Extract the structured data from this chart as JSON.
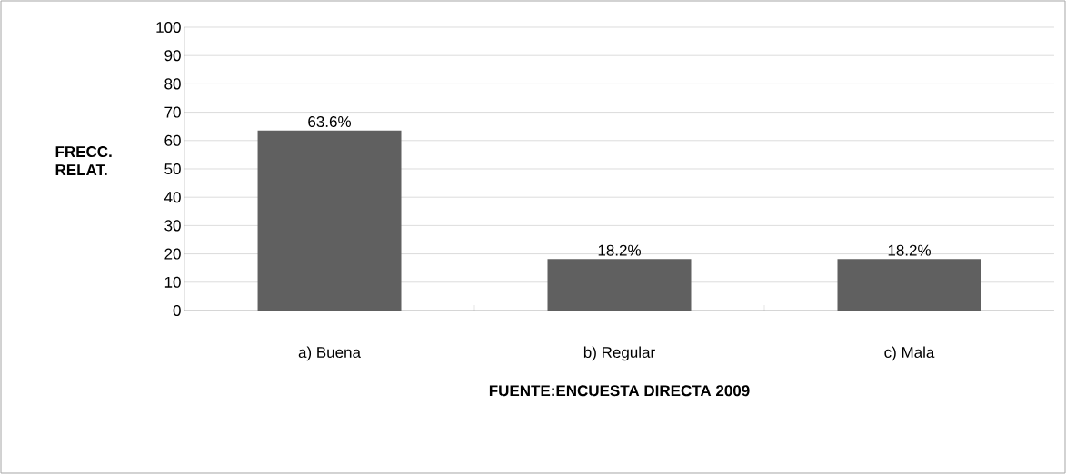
{
  "chart_data": {
    "type": "bar",
    "categories": [
      "a)    Buena",
      "b)    Regular",
      "c) Mala"
    ],
    "values": [
      63.6,
      18.2,
      18.2
    ],
    "value_labels": [
      "63.6%",
      "18.2%",
      "18.2%"
    ],
    "color": "#606060",
    "ylim": [
      0,
      100
    ],
    "yticks": [
      0,
      10,
      20,
      30,
      40,
      50,
      60,
      70,
      80,
      90,
      100
    ],
    "grid": "y",
    "ylabel": "FRECC. RELAT.",
    "xlabel": "FUENTE:ENCUESTA DIRECTA 2009"
  }
}
